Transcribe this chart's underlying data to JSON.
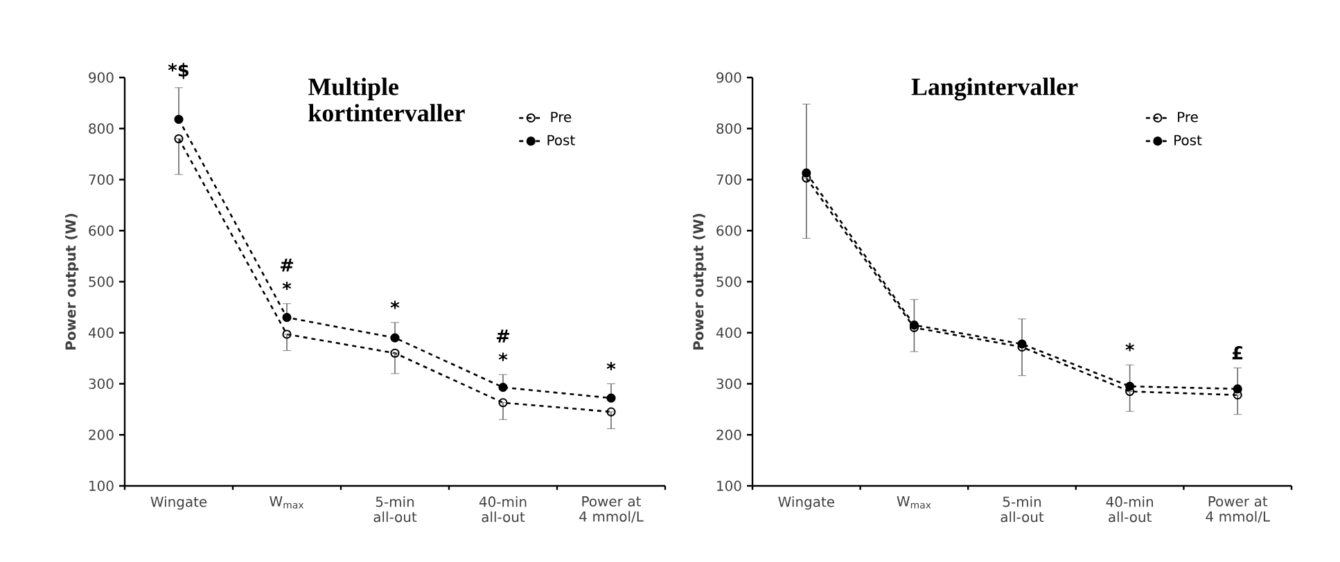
{
  "chart_data": [
    {
      "type": "line",
      "title": "Multiple kortintervaller",
      "ylabel": "Power output (W)",
      "categories": [
        "Wingate",
        "W$_{max}$",
        "5-min all-out",
        "40-min all-out",
        "Power at 4 mmol/L"
      ],
      "series": [
        {
          "name": "Pre",
          "color": "#000000",
          "values": [
            780,
            397,
            360,
            263,
            245
          ],
          "errors": [
            [
              710,
              780
            ],
            [
              365,
              397
            ],
            [
              320,
              360
            ],
            [
              230,
              263
            ],
            [
              212,
              245
            ]
          ]
        },
        {
          "name": "Post",
          "color": "#000000",
          "values": [
            818,
            430,
            390,
            293,
            272
          ],
          "errors": [
            [
              818,
              880
            ],
            [
              430,
              457
            ],
            [
              390,
              420
            ],
            [
              293,
              318
            ],
            [
              272,
              300
            ]
          ]
        }
      ],
      "ylim": [
        100,
        900
      ],
      "yticks": [
        100,
        200,
        300,
        400,
        500,
        600,
        700,
        800,
        900
      ],
      "marker": "circle",
      "line_style": "dashed",
      "legend": "top right",
      "grid": false,
      "annotations": [
        {
          "text": "*$",
          "x": "Wingate",
          "y": 818
        },
        {
          "text": "#",
          "x": "W$_{max}$",
          "y": 430
        },
        {
          "text": "*",
          "x": "W$_{max}$",
          "y": 430
        },
        {
          "text": "*",
          "x": "5-min all-out",
          "y": 390
        },
        {
          "text": "#",
          "x": "40-min all-out",
          "y": 293
        },
        {
          "text": "*",
          "x": "40-min all-out",
          "y": 293
        },
        {
          "text": "*",
          "x": "Power at 4 mmol/L",
          "y": 272
        }
      ]
    },
    {
      "type": "line",
      "title": "Langintervaller",
      "ylabel": "Power output (W)",
      "categories": [
        "Wingate",
        "W$_{max}$",
        "5-min all-out",
        "40-min all-out",
        "Power at 4 mmol/L"
      ],
      "series": [
        {
          "name": "Pre",
          "color": "#000000",
          "values": [
            703,
            410,
            372,
            285,
            278
          ],
          "errors": [
            [
              585,
              703
            ],
            [
              363,
              410
            ],
            [
              316,
              372
            ],
            [
              246,
              285
            ],
            [
              240,
              278
            ]
          ]
        },
        {
          "name": "Post",
          "color": "#000000",
          "values": [
            713,
            415,
            378,
            295,
            290
          ],
          "errors": [
            [
              713,
              848
            ],
            [
              415,
              465
            ],
            [
              378,
              427
            ],
            [
              295,
              337
            ],
            [
              290,
              331
            ]
          ]
        }
      ],
      "ylim": [
        100,
        900
      ],
      "yticks": [
        100,
        200,
        300,
        400,
        500,
        600,
        700,
        800,
        900
      ],
      "marker": "circle",
      "line_style": "dashed",
      "legend": "top right",
      "grid": false,
      "annotations": [
        {
          "text": "*",
          "x": "40-min all-out",
          "y": 295
        },
        {
          "text": "£",
          "x": "Power at 4 mmol/L",
          "y": 290
        }
      ]
    }
  ]
}
